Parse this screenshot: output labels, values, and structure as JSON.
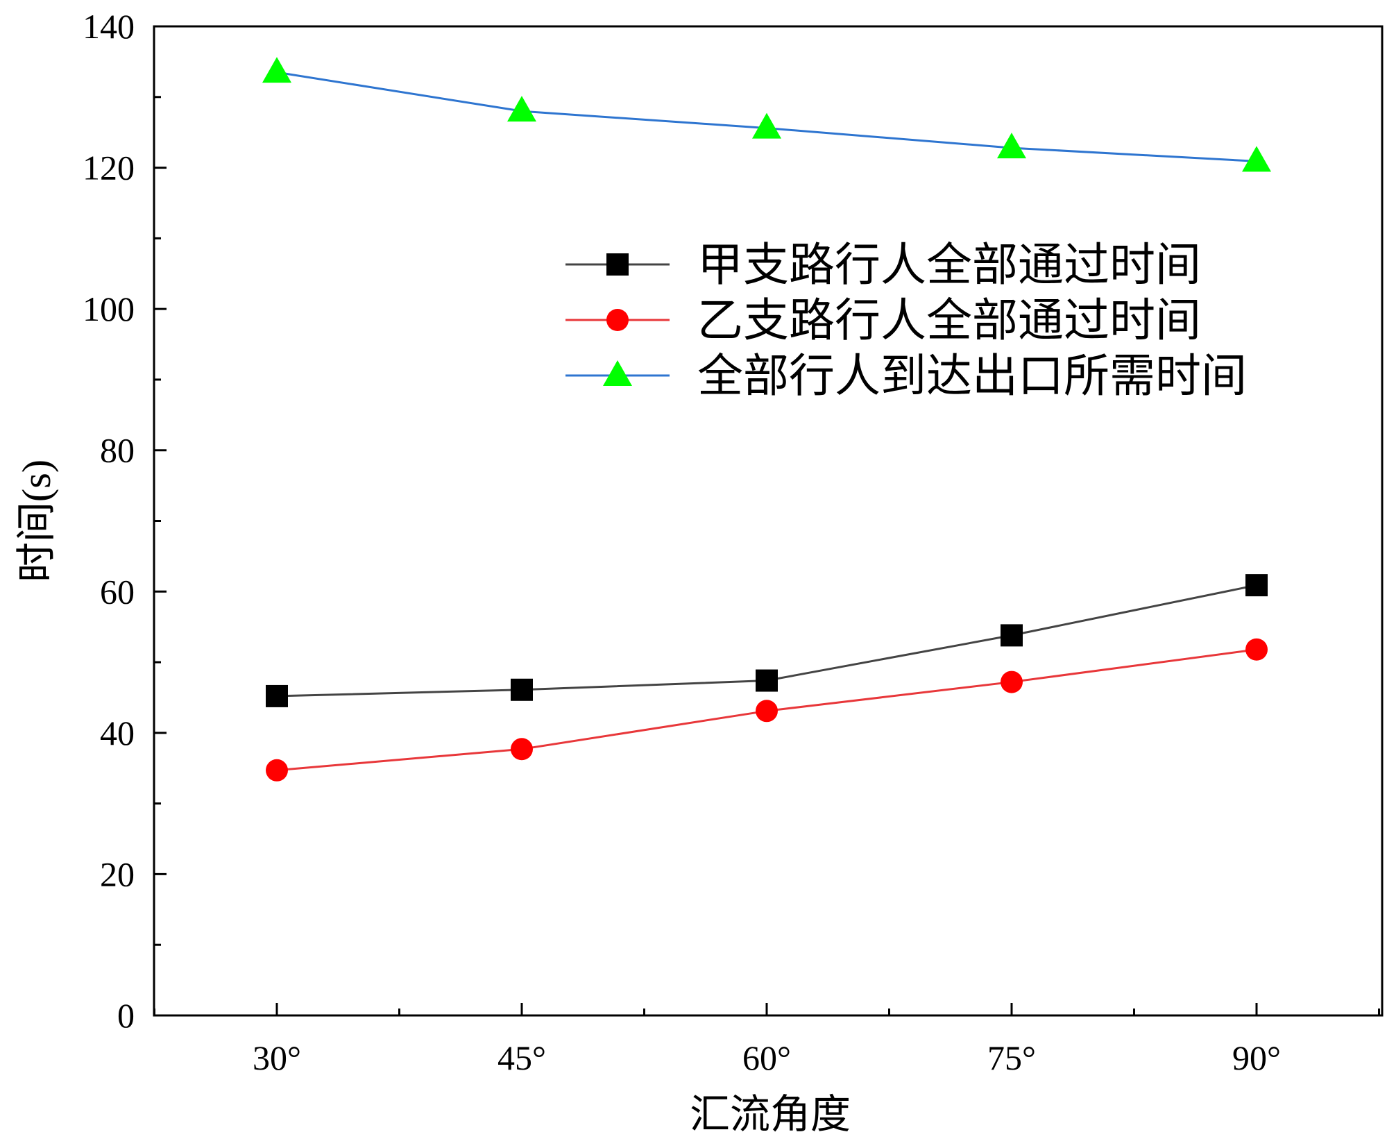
{
  "chart_data": {
    "type": "line",
    "title": "",
    "xlabel": "汇流角度",
    "ylabel": "时间(s)",
    "categories": [
      "30°",
      "45°",
      "60°",
      "75°",
      "90°"
    ],
    "ylim": [
      0,
      140
    ],
    "yticks": [
      0,
      20,
      40,
      60,
      80,
      100,
      120,
      140
    ],
    "grid": false,
    "legend_position": "upper-right",
    "series": [
      {
        "name": "甲支路行人全部通过时间",
        "marker": "square",
        "color": "#000000",
        "line_color": "#444444",
        "values": [
          45.2,
          46.1,
          47.4,
          53.8,
          60.9
        ]
      },
      {
        "name": "乙支路行人全部通过时间",
        "marker": "circle",
        "color": "#ff0000",
        "line_color": "#e8373a",
        "values": [
          34.7,
          37.7,
          43.1,
          47.2,
          51.8
        ]
      },
      {
        "name": "全部行人到达出口所需时间",
        "marker": "triangle",
        "color": "#00ff00",
        "line_color": "#2e75d0",
        "values": [
          133.5,
          128.0,
          125.6,
          122.8,
          120.9
        ]
      }
    ]
  }
}
